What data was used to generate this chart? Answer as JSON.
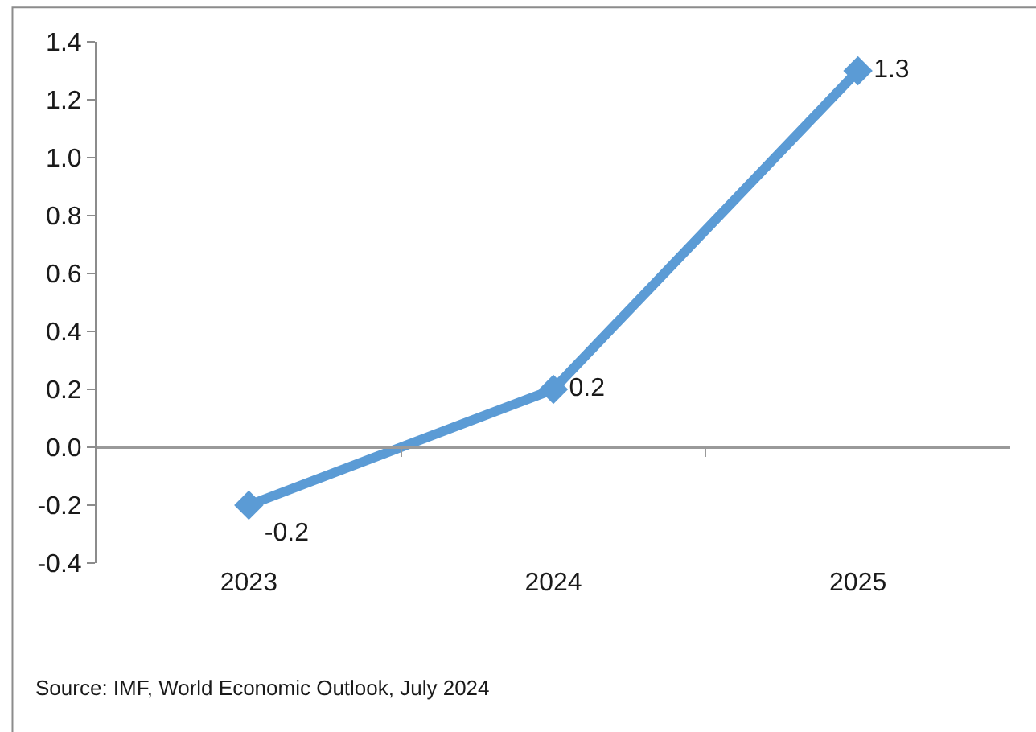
{
  "chart_data": {
    "type": "line",
    "categories": [
      "2023",
      "2024",
      "2025"
    ],
    "series": [
      {
        "color": "#5b9bd5",
        "values": [
          -0.2,
          0.2,
          1.3
        ]
      }
    ],
    "ylim": [
      -0.4,
      1.4
    ],
    "yticks": [
      -0.4,
      -0.2,
      {
        "value": 0,
        "label": "0.0"
      },
      0.2,
      0.4,
      0.6,
      0.8,
      {
        "value": 1,
        "label": "1.0"
      },
      1.2,
      1.4
    ],
    "marker": "diamond",
    "line_style": "solid",
    "data_labels": true,
    "annotations": [
      "Source: IMF, World Economic Outlook, July 2024"
    ]
  }
}
